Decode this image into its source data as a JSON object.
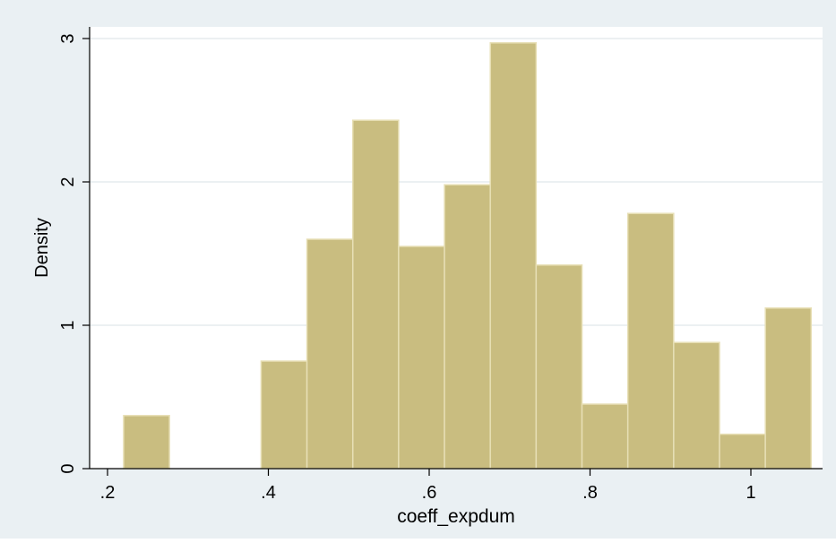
{
  "chart_data": {
    "type": "bar",
    "title": "",
    "xlabel": "coeff_expdum",
    "ylabel": "Density",
    "xlim": [
      0.2,
      1.08
    ],
    "ylim": [
      0,
      3
    ],
    "xticks": [
      0.2,
      0.4,
      0.6,
      0.8,
      1.0
    ],
    "xtick_labels": [
      ".2",
      ".4",
      ".6",
      ".8",
      "1"
    ],
    "yticks": [
      0,
      1,
      2,
      3
    ],
    "ytick_labels": [
      "0",
      "1",
      "2",
      "3"
    ],
    "grid": true,
    "bins": [
      {
        "start": 0.22,
        "end": 0.277,
        "value": 0.37
      },
      {
        "start": 0.277,
        "end": 0.334,
        "value": 0
      },
      {
        "start": 0.334,
        "end": 0.391,
        "value": 0
      },
      {
        "start": 0.391,
        "end": 0.448,
        "value": 0.75
      },
      {
        "start": 0.448,
        "end": 0.505,
        "value": 1.6
      },
      {
        "start": 0.505,
        "end": 0.562,
        "value": 2.43
      },
      {
        "start": 0.562,
        "end": 0.619,
        "value": 1.55
      },
      {
        "start": 0.619,
        "end": 0.676,
        "value": 1.98
      },
      {
        "start": 0.676,
        "end": 0.733,
        "value": 2.97
      },
      {
        "start": 0.733,
        "end": 0.79,
        "value": 1.42
      },
      {
        "start": 0.79,
        "end": 0.847,
        "value": 0.45
      },
      {
        "start": 0.847,
        "end": 0.904,
        "value": 1.78
      },
      {
        "start": 0.904,
        "end": 0.961,
        "value": 0.88
      },
      {
        "start": 0.961,
        "end": 1.018,
        "value": 0.24
      },
      {
        "start": 1.018,
        "end": 1.075,
        "value": 1.12
      }
    ],
    "colors": {
      "bar_fill": "#c9bd80",
      "bar_edge": "#e7dfb5",
      "plot_bg": "#ffffff",
      "outer_bg": "#eaf0f3",
      "grid": "#e6ebee",
      "axis": "#000000"
    }
  }
}
